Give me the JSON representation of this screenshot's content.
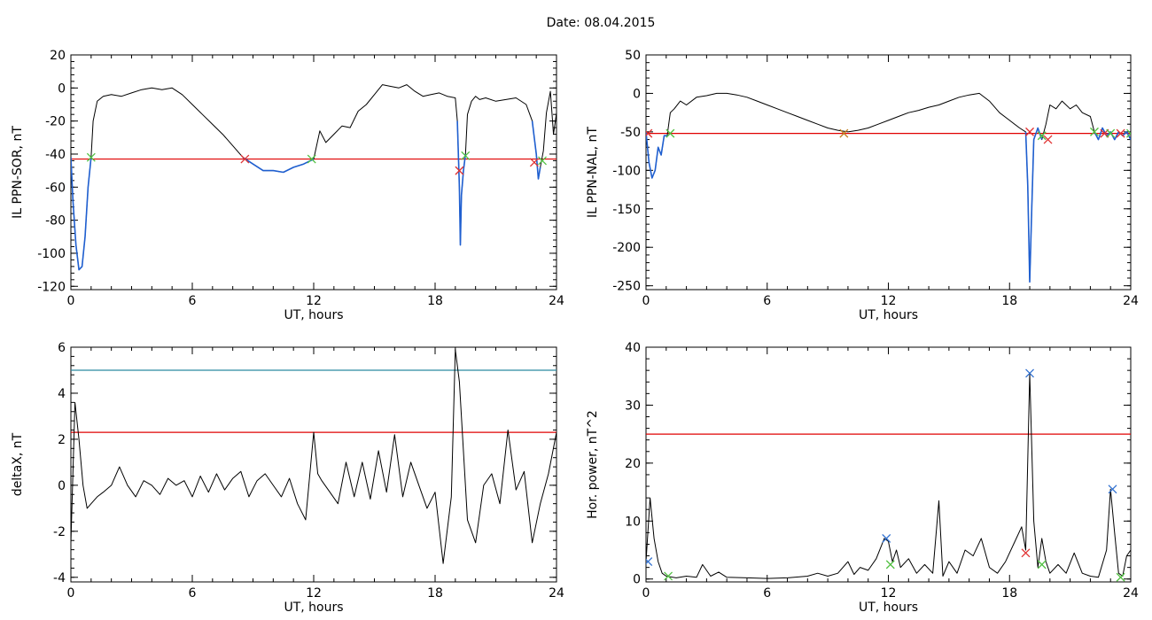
{
  "header": {
    "date_label": "Date:",
    "date_value": "08.04.2015"
  },
  "colors": {
    "trace": "#000000",
    "blue_segment": "#1f5fd0",
    "threshold_red": "#e00000",
    "threshold_blue": "#2a8aa0",
    "marker_red": "#e03030",
    "marker_green": "#50c040",
    "marker_blue": "#3070d0",
    "marker_orange": "#c08020"
  },
  "chart_data": [
    {
      "type": "line",
      "xlabel": "UT, hours",
      "ylabel": "IL PPN-SOR, nT",
      "xlim": [
        0,
        24
      ],
      "ylim": [
        -122,
        20
      ],
      "xticks": [
        0,
        6,
        12,
        18,
        24
      ],
      "yticks": [
        20,
        0,
        -20,
        -40,
        -60,
        -80,
        -100,
        -120
      ],
      "grid": false,
      "series": [
        {
          "color": "#000000",
          "x": [
            0,
            0.1,
            0.25,
            0.4,
            0.55,
            0.7,
            0.85,
            1.0,
            1.1,
            1.3,
            1.6,
            2.0,
            2.5,
            3.0,
            3.5,
            4.0,
            4.5,
            5.0,
            5.5,
            6.0,
            6.5,
            7.0,
            7.5,
            8.0,
            8.5,
            9.0,
            9.5,
            10.0,
            10.5,
            11.0,
            11.5,
            12.0,
            12.3,
            12.6,
            13.0,
            13.4,
            13.8,
            14.2,
            14.6,
            15.0,
            15.4,
            15.8,
            16.2,
            16.6,
            17.0,
            17.4,
            17.8,
            18.2,
            18.6,
            19.0,
            19.1,
            19.2,
            19.25,
            19.3,
            19.4,
            19.5,
            19.6,
            19.8,
            20.0,
            20.2,
            20.5,
            21.0,
            21.5,
            22.0,
            22.5,
            22.8,
            22.9,
            23.0,
            23.1,
            23.2,
            23.35,
            23.5,
            23.7,
            23.85,
            24.0
          ],
          "y": [
            -42,
            -68,
            -95,
            -110,
            -108,
            -90,
            -60,
            -42,
            -20,
            -8,
            -5,
            -4,
            -5,
            -3,
            -1,
            0,
            -1,
            0,
            -4,
            -10,
            -16,
            -22,
            -28,
            -35,
            -42,
            -46,
            -50,
            -50,
            -51,
            -48,
            -46,
            -43,
            -26,
            -33,
            -28,
            -23,
            -24,
            -14,
            -10,
            -4,
            2,
            1,
            0,
            2,
            -2,
            -5,
            -4,
            -3,
            -5,
            -6,
            -20,
            -60,
            -95,
            -65,
            -50,
            -40,
            -16,
            -8,
            -5,
            -7,
            -6,
            -8,
            -7,
            -6,
            -10,
            -20,
            -30,
            -40,
            -55,
            -48,
            -38,
            -15,
            -2,
            -28,
            -15
          ]
        },
        {
          "color": "#1f5fd0",
          "x": [
            0,
            0.1,
            0.25,
            0.4,
            0.55,
            0.7,
            0.85,
            1.0
          ],
          "y": [
            -42,
            -68,
            -95,
            -110,
            -108,
            -90,
            -60,
            -42
          ]
        },
        {
          "color": "#1f5fd0",
          "x": [
            8.5,
            9.0,
            9.5,
            10.0,
            10.5,
            11.0,
            11.5,
            12.0
          ],
          "y": [
            -42,
            -46,
            -50,
            -50,
            -51,
            -48,
            -46,
            -43
          ]
        },
        {
          "color": "#1f5fd0",
          "x": [
            19.1,
            19.2,
            19.25,
            19.3,
            19.4,
            19.5
          ],
          "y": [
            -20,
            -60,
            -95,
            -65,
            -50,
            -40
          ]
        },
        {
          "color": "#1f5fd0",
          "x": [
            22.8,
            22.9,
            23.0,
            23.1,
            23.2
          ],
          "y": [
            -20,
            -30,
            -40,
            -55,
            -48
          ]
        }
      ],
      "threshold_lines": [
        {
          "y": -43,
          "color": "#e00000"
        }
      ],
      "markers": [
        {
          "x": 1.0,
          "y": -42,
          "color": "#50c040"
        },
        {
          "x": 8.6,
          "y": -43,
          "color": "#e03030"
        },
        {
          "x": 11.9,
          "y": -43,
          "color": "#50c040"
        },
        {
          "x": 19.2,
          "y": -50,
          "color": "#e03030"
        },
        {
          "x": 19.5,
          "y": -41,
          "color": "#50c040"
        },
        {
          "x": 22.9,
          "y": -45,
          "color": "#e03030"
        },
        {
          "x": 23.3,
          "y": -44,
          "color": "#50c040"
        }
      ]
    },
    {
      "type": "line",
      "xlabel": "UT, hours",
      "ylabel": "IL PPN-NAL, nT",
      "xlim": [
        0,
        24
      ],
      "ylim": [
        -255,
        50
      ],
      "xticks": [
        0,
        6,
        12,
        18,
        24
      ],
      "yticks": [
        50,
        0,
        -50,
        -100,
        -150,
        -200,
        -250
      ],
      "grid": false,
      "series": [
        {
          "color": "#000000",
          "x": [
            0,
            0.15,
            0.3,
            0.45,
            0.6,
            0.75,
            0.9,
            1.05,
            1.2,
            1.4,
            1.7,
            2.0,
            2.5,
            3.0,
            3.5,
            4.0,
            4.5,
            5.0,
            5.5,
            6.0,
            6.5,
            7.0,
            7.5,
            8.0,
            8.5,
            9.0,
            9.5,
            10.0,
            10.5,
            11.0,
            11.5,
            12.0,
            12.5,
            13.0,
            13.5,
            14.0,
            14.5,
            15.0,
            15.5,
            16.0,
            16.5,
            17.0,
            17.5,
            18.0,
            18.5,
            18.8,
            18.9,
            19.0,
            19.1,
            19.2,
            19.4,
            19.6,
            19.8,
            20.0,
            20.3,
            20.6,
            21.0,
            21.3,
            21.6,
            22.0,
            22.2,
            22.4,
            22.6,
            22.8,
            23.0,
            23.2,
            23.4,
            23.6,
            23.8,
            24.0
          ],
          "y": [
            -50,
            -90,
            -110,
            -100,
            -70,
            -80,
            -55,
            -55,
            -25,
            -20,
            -10,
            -15,
            -5,
            -3,
            0,
            0,
            -2,
            -5,
            -10,
            -15,
            -20,
            -25,
            -30,
            -35,
            -40,
            -45,
            -48,
            -50,
            -48,
            -45,
            -40,
            -35,
            -30,
            -25,
            -22,
            -18,
            -15,
            -10,
            -5,
            -2,
            0,
            -10,
            -25,
            -35,
            -45,
            -50,
            -120,
            -245,
            -150,
            -60,
            -45,
            -60,
            -40,
            -15,
            -20,
            -10,
            -20,
            -15,
            -25,
            -30,
            -50,
            -60,
            -45,
            -55,
            -50,
            -60,
            -50,
            -55,
            -50,
            -60
          ]
        },
        {
          "color": "#1f5fd0",
          "x": [
            0,
            0.15,
            0.3,
            0.45,
            0.6,
            0.75,
            0.9,
            1.05
          ],
          "y": [
            -50,
            -90,
            -110,
            -100,
            -70,
            -80,
            -55,
            -55
          ]
        },
        {
          "color": "#1f5fd0",
          "x": [
            18.8,
            18.9,
            19.0,
            19.1,
            19.2,
            19.4,
            19.6
          ],
          "y": [
            -50,
            -120,
            -245,
            -150,
            -60,
            -45,
            -60
          ]
        },
        {
          "color": "#1f5fd0",
          "x": [
            22.2,
            22.4,
            22.6,
            22.8,
            23.0,
            23.2,
            23.4,
            23.6,
            23.8,
            24.0
          ],
          "y": [
            -50,
            -60,
            -45,
            -55,
            -50,
            -60,
            -50,
            -55,
            -50,
            -60
          ]
        }
      ],
      "threshold_lines": [
        {
          "y": -52,
          "color": "#e00000"
        }
      ],
      "markers": [
        {
          "x": 0.1,
          "y": -52,
          "color": "#e03030"
        },
        {
          "x": 1.2,
          "y": -52,
          "color": "#50c040"
        },
        {
          "x": 9.8,
          "y": -52,
          "color": "#c08020"
        },
        {
          "x": 19.0,
          "y": -50,
          "color": "#e03030"
        },
        {
          "x": 19.6,
          "y": -55,
          "color": "#50c040"
        },
        {
          "x": 19.9,
          "y": -60,
          "color": "#e03030"
        },
        {
          "x": 22.2,
          "y": -50,
          "color": "#50c040"
        },
        {
          "x": 22.7,
          "y": -52,
          "color": "#e03030"
        },
        {
          "x": 23.0,
          "y": -52,
          "color": "#50c040"
        },
        {
          "x": 23.5,
          "y": -52,
          "color": "#e03030"
        },
        {
          "x": 24.0,
          "y": -52,
          "color": "#50c040"
        }
      ]
    },
    {
      "type": "line",
      "xlabel": "UT, hours",
      "ylabel": "deltaX, nT",
      "xlim": [
        0,
        24
      ],
      "ylim": [
        -4.2,
        6
      ],
      "xticks": [
        0,
        6,
        12,
        18,
        24
      ],
      "yticks": [
        6,
        4,
        2,
        0,
        -2,
        -4
      ],
      "grid": false,
      "series": [
        {
          "color": "#000000",
          "x": [
            0,
            0.2,
            0.4,
            0.6,
            0.8,
            1.0,
            1.3,
            1.6,
            2.0,
            2.4,
            2.8,
            3.2,
            3.6,
            4.0,
            4.4,
            4.8,
            5.2,
            5.6,
            6.0,
            6.4,
            6.8,
            7.2,
            7.6,
            8.0,
            8.4,
            8.8,
            9.2,
            9.6,
            10.0,
            10.4,
            10.8,
            11.2,
            11.6,
            12.0,
            12.2,
            12.4,
            12.8,
            13.2,
            13.6,
            14.0,
            14.4,
            14.8,
            15.2,
            15.6,
            16.0,
            16.4,
            16.8,
            17.2,
            17.6,
            18.0,
            18.4,
            18.8,
            19.0,
            19.2,
            19.6,
            20.0,
            20.4,
            20.8,
            21.2,
            21.6,
            22.0,
            22.4,
            22.8,
            23.2,
            23.6,
            24.0
          ],
          "y": [
            -2.5,
            3.6,
            2.0,
            0,
            -1.0,
            -0.8,
            -0.5,
            -0.3,
            0,
            0.8,
            0,
            -0.5,
            0.2,
            0,
            -0.4,
            0.3,
            0,
            0.2,
            -0.5,
            0.4,
            -0.3,
            0.5,
            -0.2,
            0.3,
            0.6,
            -0.5,
            0.2,
            0.5,
            0,
            -0.5,
            0.3,
            -0.8,
            -1.5,
            2.3,
            0.5,
            0.2,
            -0.3,
            -0.8,
            1.0,
            -0.5,
            1.0,
            -0.6,
            1.5,
            -0.3,
            2.2,
            -0.5,
            1.0,
            0,
            -1.0,
            -0.3,
            -3.4,
            -0.5,
            5.9,
            4.5,
            -1.5,
            -2.5,
            0,
            0.5,
            -0.8,
            2.4,
            -0.2,
            0.6,
            -2.5,
            -0.8,
            0.5,
            2.3
          ]
        }
      ],
      "threshold_lines": [
        {
          "y": 5.0,
          "color": "#2a8aa0"
        },
        {
          "y": 2.3,
          "color": "#e00000"
        }
      ],
      "markers": []
    },
    {
      "type": "line",
      "xlabel": "UT, hours",
      "ylabel": "Hor. power, nT^2",
      "xlim": [
        0,
        24
      ],
      "ylim": [
        -0.5,
        40
      ],
      "xticks": [
        0,
        6,
        12,
        18,
        24
      ],
      "yticks": [
        40,
        30,
        20,
        10,
        0
      ],
      "grid": false,
      "series": [
        {
          "color": "#000000",
          "x": [
            0,
            0.2,
            0.4,
            0.6,
            0.8,
            1.0,
            1.5,
            2.0,
            2.5,
            2.8,
            3.2,
            3.6,
            4.0,
            5.0,
            6.0,
            7.0,
            8.0,
            8.5,
            9.0,
            9.5,
            10.0,
            10.3,
            10.6,
            11.0,
            11.4,
            11.8,
            12.0,
            12.2,
            12.4,
            12.6,
            13.0,
            13.4,
            13.8,
            14.2,
            14.5,
            14.7,
            15.0,
            15.4,
            15.8,
            16.2,
            16.6,
            17.0,
            17.4,
            17.8,
            18.2,
            18.6,
            18.8,
            19.0,
            19.2,
            19.4,
            19.6,
            19.8,
            20.0,
            20.4,
            20.8,
            21.2,
            21.6,
            22.0,
            22.4,
            22.8,
            23.0,
            23.2,
            23.4,
            23.6,
            23.8,
            24.0
          ],
          "y": [
            3,
            14,
            7,
            3,
            1,
            0.5,
            0.2,
            0.5,
            0.3,
            2.5,
            0.5,
            1.2,
            0.3,
            0.2,
            0.1,
            0.2,
            0.5,
            1.0,
            0.5,
            1.0,
            3.0,
            0.8,
            2.0,
            1.5,
            3.5,
            7.0,
            6.5,
            3.0,
            5.0,
            2.0,
            3.5,
            1.0,
            2.5,
            1.0,
            13.5,
            0.5,
            3.0,
            1.0,
            5.0,
            4.0,
            7.0,
            2.0,
            1.0,
            3.0,
            6.0,
            9.0,
            5.0,
            35.5,
            10.0,
            2.0,
            7.0,
            3.0,
            1.0,
            2.5,
            1.0,
            4.5,
            1.0,
            0.5,
            0.3,
            5.0,
            15.5,
            8.0,
            1.0,
            0.5,
            4.0,
            5.0
          ]
        }
      ],
      "threshold_lines": [
        {
          "y": 25,
          "color": "#e00000"
        }
      ],
      "markers": [
        {
          "x": 0.1,
          "y": 3.0,
          "color": "#3070d0"
        },
        {
          "x": 1.1,
          "y": 0.5,
          "color": "#50c040"
        },
        {
          "x": 11.9,
          "y": 7.0,
          "color": "#3070d0"
        },
        {
          "x": 12.1,
          "y": 2.5,
          "color": "#50c040"
        },
        {
          "x": 19.0,
          "y": 35.5,
          "color": "#3070d0"
        },
        {
          "x": 18.8,
          "y": 4.5,
          "color": "#e03030"
        },
        {
          "x": 19.6,
          "y": 2.5,
          "color": "#50c040"
        },
        {
          "x": 23.1,
          "y": 15.5,
          "color": "#3070d0"
        },
        {
          "x": 23.5,
          "y": 0.3,
          "color": "#50c040"
        }
      ]
    }
  ]
}
